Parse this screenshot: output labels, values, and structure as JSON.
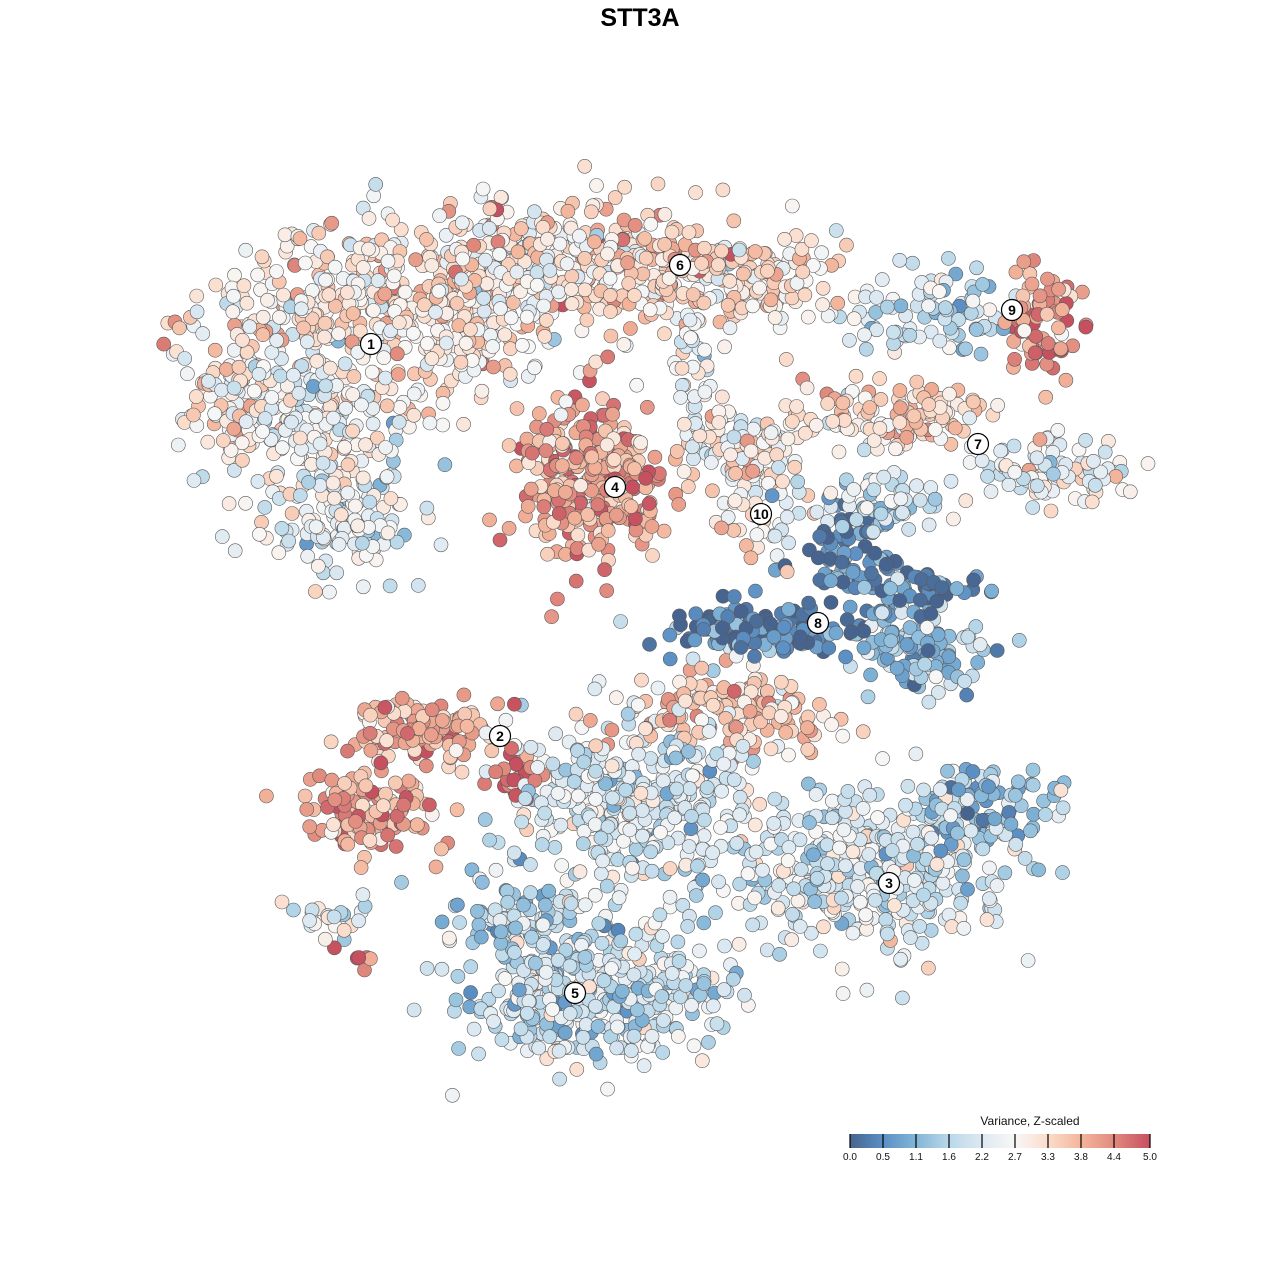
{
  "chart_data": {
    "type": "scatter",
    "title": "STT3A",
    "xlabel": "",
    "ylabel": "",
    "grid": false,
    "legend": {
      "title": "Variance, Z-scaled",
      "placement": "bottom-right",
      "range": [
        0,
        5
      ],
      "ticks": [
        "0.0",
        "0.5",
        "1.1",
        "1.6",
        "2.2",
        "2.7",
        "3.3",
        "3.8",
        "4.4",
        "5.0"
      ],
      "tick_values": [
        0,
        0.55,
        1.1,
        1.65,
        2.2,
        2.75,
        3.3,
        3.85,
        4.4,
        5.0
      ]
    },
    "colorscale": [
      {
        "v": 0.0,
        "c": "#46648f"
      },
      {
        "v": 0.55,
        "c": "#5b8fc4"
      },
      {
        "v": 1.1,
        "c": "#82b5d8"
      },
      {
        "v": 1.65,
        "c": "#b9d8e9"
      },
      {
        "v": 2.2,
        "c": "#dde9f2"
      },
      {
        "v": 2.75,
        "c": "#f8f7f6"
      },
      {
        "v": 3.3,
        "c": "#fbdccb"
      },
      {
        "v": 3.85,
        "c": "#f3b59b"
      },
      {
        "v": 4.4,
        "c": "#e18a7e"
      },
      {
        "v": 5.0,
        "c": "#c6505f"
      }
    ],
    "point_groups_note": "embedding coordinates (t-SNE units) with mean expression per group",
    "point_groups": [
      {
        "cluster": "1",
        "x": -31,
        "y": 34,
        "sx": 8,
        "sy": 5,
        "n": 250,
        "mean": 3.0
      },
      {
        "cluster": "1",
        "x": -34,
        "y": 22,
        "sx": 7,
        "sy": 6,
        "n": 250,
        "mean": 2.6
      },
      {
        "cluster": "1",
        "x": -29,
        "y": 12,
        "sx": 5,
        "sy": 4,
        "n": 120,
        "mean": 2.3
      },
      {
        "cluster": "1",
        "x": -19,
        "y": 32,
        "sx": 6,
        "sy": 5,
        "n": 200,
        "mean": 3.1
      },
      {
        "cluster": "1",
        "x": -41,
        "y": 24,
        "sx": 2,
        "sy": 3,
        "n": 50,
        "mean": 3.3
      },
      {
        "cluster": "6",
        "x": -12,
        "y": 38,
        "sx": 6,
        "sy": 4,
        "n": 200,
        "mean": 3.0
      },
      {
        "cluster": "6",
        "x": 0,
        "y": 37,
        "sx": 6,
        "sy": 4,
        "n": 200,
        "mean": 3.4
      },
      {
        "cluster": "6",
        "x": 12,
        "y": 36,
        "sx": 5,
        "sy": 3,
        "n": 120,
        "mean": 3.1
      },
      {
        "cluster": "6",
        "x": 5,
        "y": 27,
        "sx": 2,
        "sy": 4,
        "n": 40,
        "mean": 2.6
      },
      {
        "cluster": "4",
        "x": -5,
        "y": 16,
        "sx": 4.5,
        "sy": 5,
        "n": 300,
        "mean": 4.0
      },
      {
        "cluster": "10",
        "x": 12,
        "y": 15,
        "sx": 3,
        "sy": 4,
        "n": 80,
        "mean": 3.0
      },
      {
        "cluster": "10",
        "x": 10,
        "y": 20,
        "sx": 4,
        "sy": 2,
        "n": 60,
        "mean": 2.6
      },
      {
        "cluster": "9",
        "x": 29,
        "y": 33,
        "sx": 5,
        "sy": 2.5,
        "n": 90,
        "mean": 2.0
      },
      {
        "cluster": "9",
        "x": 40,
        "y": 32,
        "sx": 2.5,
        "sy": 3.5,
        "n": 70,
        "mean": 4.2
      },
      {
        "cluster": "7",
        "x": 26,
        "y": 22,
        "sx": 6,
        "sy": 2,
        "n": 120,
        "mean": 3.3
      },
      {
        "cluster": "7",
        "x": 41,
        "y": 17,
        "sx": 5,
        "sy": 2,
        "n": 100,
        "mean": 2.6
      },
      {
        "cluster": "7",
        "x": 24,
        "y": 14,
        "sx": 4,
        "sy": 2,
        "n": 60,
        "mean": 1.9
      },
      {
        "cluster": "8",
        "x": 21,
        "y": 7,
        "sx": 3,
        "sy": 4,
        "n": 100,
        "mean": 0.4
      },
      {
        "cluster": "8",
        "x": 11,
        "y": 1,
        "sx": 6,
        "sy": 1.5,
        "n": 120,
        "mean": 0.4
      },
      {
        "cluster": "8",
        "x": 28,
        "y": -1,
        "sx": 4,
        "sy": 3,
        "n": 120,
        "mean": 1.2
      },
      {
        "cluster": "8",
        "x": 29,
        "y": 5,
        "sx": 3,
        "sy": 1,
        "n": 40,
        "mean": 0.2
      },
      {
        "cluster": "2",
        "x": -23,
        "y": -9,
        "sx": 5,
        "sy": 2,
        "n": 120,
        "mean": 4.0
      },
      {
        "cluster": "2",
        "x": -26,
        "y": -17,
        "sx": 4.5,
        "sy": 2.5,
        "n": 120,
        "mean": 3.9
      },
      {
        "cluster": "2",
        "x": -12.5,
        "y": -13.5,
        "sx": 1.5,
        "sy": 1.5,
        "n": 30,
        "mean": 4.6
      },
      {
        "cluster": "3",
        "x": 10,
        "y": -7,
        "sx": 7,
        "sy": 2.5,
        "n": 150,
        "mean": 3.4
      },
      {
        "cluster": "3",
        "x": 0,
        "y": -16,
        "sx": 8,
        "sy": 5,
        "n": 400,
        "mean": 2.2
      },
      {
        "cluster": "3",
        "x": 23,
        "y": -23,
        "sx": 9,
        "sy": 5,
        "n": 400,
        "mean": 2.2
      },
      {
        "cluster": "3",
        "x": 34,
        "y": -17,
        "sx": 4,
        "sy": 2.5,
        "n": 100,
        "mean": 1.3
      },
      {
        "cluster": "5",
        "x": -4,
        "y": -35,
        "sx": 8,
        "sy": 4.5,
        "n": 400,
        "mean": 2.0
      },
      {
        "cluster": "5",
        "x": -12,
        "y": -28,
        "sx": 4,
        "sy": 2.5,
        "n": 80,
        "mean": 1.8
      },
      {
        "cluster": "2",
        "x": -31,
        "y": -28,
        "sx": 3,
        "sy": 1.5,
        "n": 25,
        "mean": 2.2
      },
      {
        "cluster": "2",
        "x": -28,
        "y": -31.5,
        "sx": 1,
        "sy": 0.8,
        "n": 6,
        "mean": 4.8
      }
    ],
    "cluster_labels": [
      {
        "label": "1",
        "x": -26.9,
        "y": 29.6
      },
      {
        "label": "2",
        "x": -14,
        "y": -9.6
      },
      {
        "label": "3",
        "x": 24.9,
        "y": -24.3
      },
      {
        "label": "4",
        "x": -2.5,
        "y": 15.3
      },
      {
        "label": "5",
        "x": -6.5,
        "y": -35.3
      },
      {
        "label": "6",
        "x": 4,
        "y": 37.5
      },
      {
        "label": "7",
        "x": 33.8,
        "y": 19.6
      },
      {
        "label": "8",
        "x": 17.8,
        "y": 1.7
      },
      {
        "label": "9",
        "x": 37.2,
        "y": 33
      },
      {
        "label": "10",
        "x": 12.1,
        "y": 12.6
      }
    ]
  }
}
